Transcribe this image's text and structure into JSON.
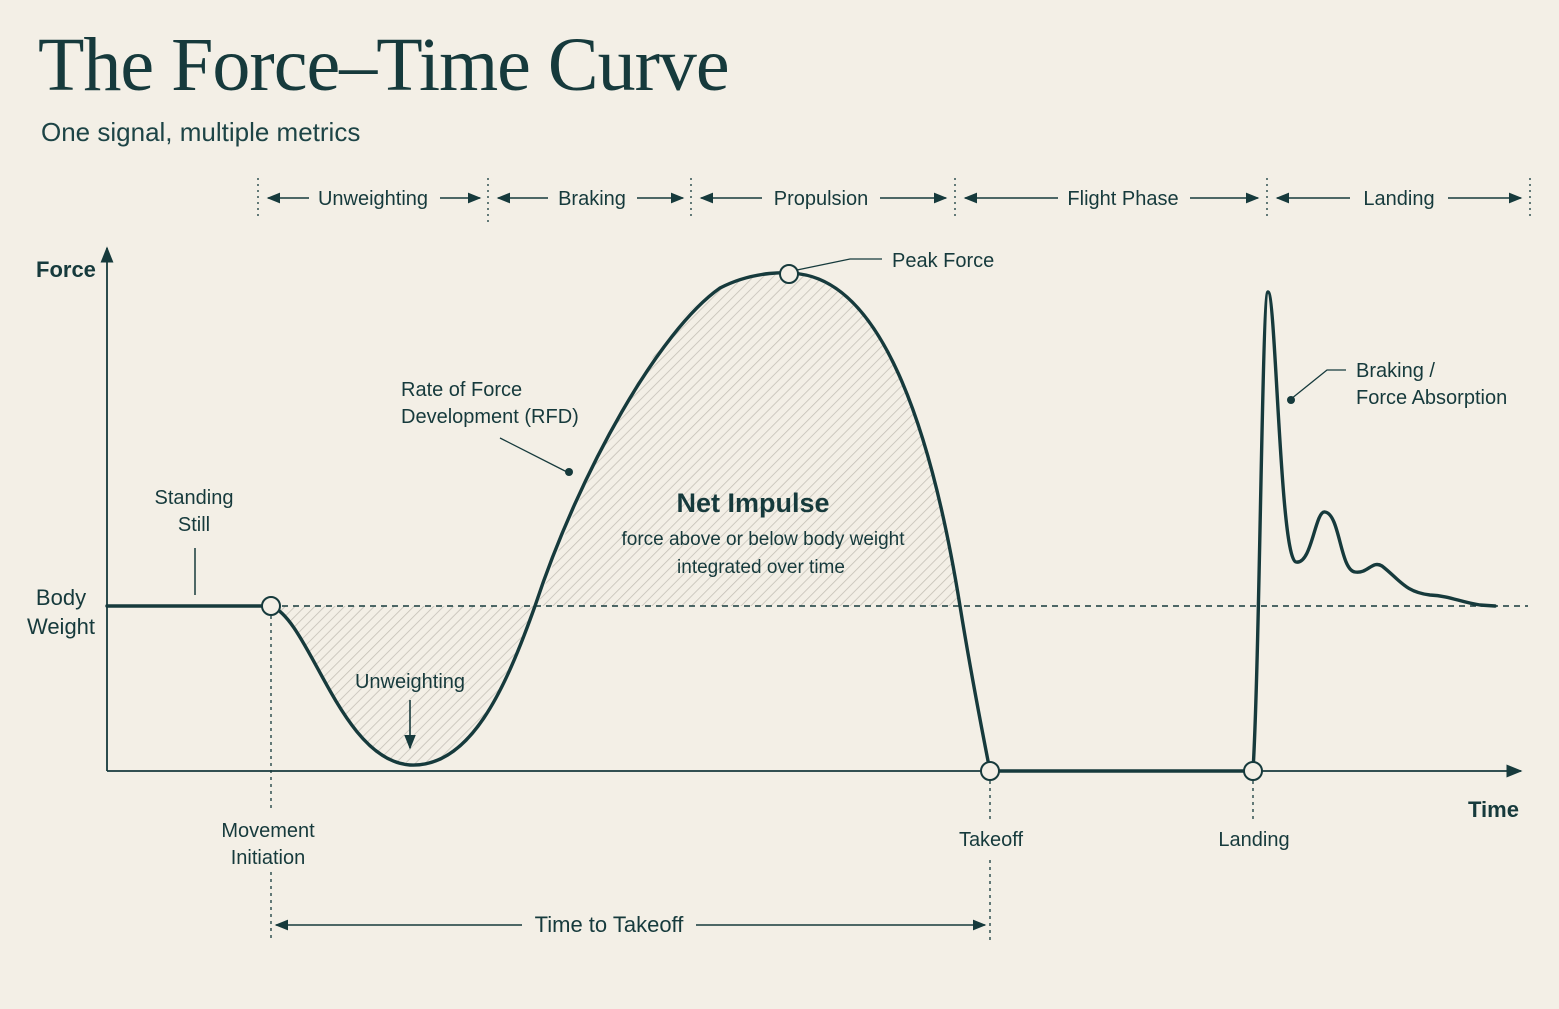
{
  "header": {
    "title": "The Force–Time Curve",
    "subtitle": "One signal, multiple metrics"
  },
  "phases": [
    "Unweighting",
    "Braking",
    "Propulsion",
    "Flight Phase",
    "Landing"
  ],
  "axes": {
    "y_label": "Force",
    "x_label": "Time",
    "baseline_label_line1": "Body",
    "baseline_label_line2": "Weight"
  },
  "annotations": {
    "standing_still_line1": "Standing",
    "standing_still_line2": "Still",
    "unweighting": "Unweighting",
    "rfd_line1": "Rate of Force",
    "rfd_line2": "Development (RFD)",
    "peak_force": "Peak Force",
    "net_impulse_title": "Net Impulse",
    "net_impulse_sub1": "force above or below body weight",
    "net_impulse_sub2": "integrated over time",
    "braking_line1": "Braking /",
    "braking_line2": "Force Absorption"
  },
  "events": {
    "movement_initiation_line1": "Movement",
    "movement_initiation_line2": "Initiation",
    "takeoff": "Takeoff",
    "landing": "Landing",
    "time_to_takeoff": "Time to Takeoff"
  },
  "colors": {
    "background": "#f3efe6",
    "ink": "#163a3c",
    "hatch": "#c4c0b6"
  }
}
